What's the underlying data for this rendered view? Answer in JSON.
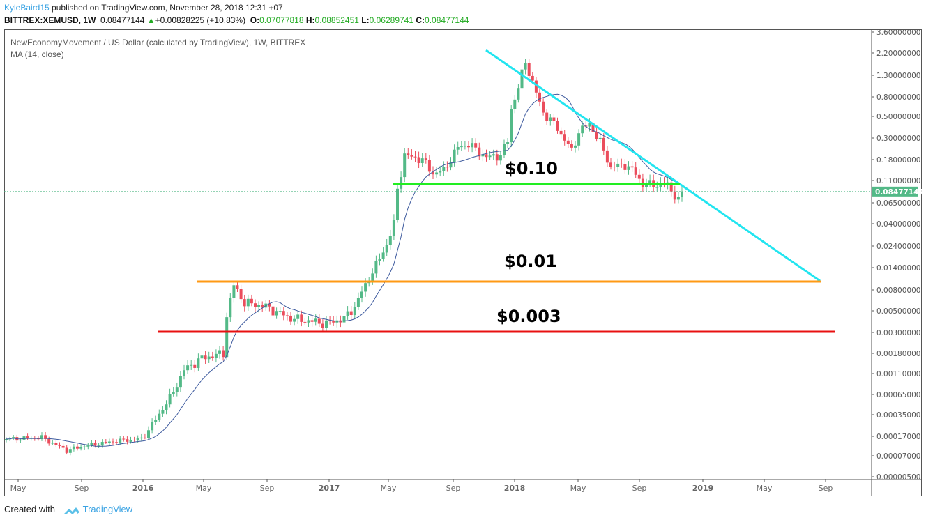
{
  "header": {
    "author": "KyleBaird15",
    "published": " published on TradingView.com, November 28, 2018 12:31 +07",
    "symbol": "BITTREX:XEMUSD, 1W",
    "last": "0.08477144",
    "change": "+0.00828225 (+10.83%)",
    "o_label": "O:",
    "o": "0.07077818",
    "h_label": "H:",
    "h": "0.08852451",
    "l_label": "L:",
    "l": "0.06289741",
    "c_label": "C:",
    "c": "0.08477144"
  },
  "legend": {
    "title": "NewEconomyMovement / US Dollar (calculated by TradingView), 1W, BITTREX",
    "ma": "MA (14, close)"
  },
  "footer": {
    "created": "Created with",
    "brand": "TradingView"
  },
  "colors": {
    "up": "#53b987",
    "down": "#eb4d5c",
    "ma": "#3d5a9e",
    "trend": "#22e5f0",
    "support1": "#22ee22",
    "support2": "#ff9a14",
    "support3": "#e81010"
  },
  "chart_data": {
    "type": "candlestick",
    "scale": "log",
    "y_ticks": [
      3.6,
      2.2,
      1.3,
      0.8,
      0.5,
      0.3,
      0.18,
      0.11,
      0.065,
      0.04,
      0.024,
      0.014,
      0.008,
      0.005,
      0.003,
      0.0018,
      0.0011,
      0.00065,
      0.00035,
      0.00017,
      7e-05,
      5e-06
    ],
    "y_tick_labels": [
      "3.60000000",
      "2.20000000",
      "1.30000000",
      "0.80000000",
      "0.50000000",
      "0.30000000",
      "0.18000000",
      "0.11000000",
      "0.06500000",
      "0.04000000",
      "0.02400000",
      "0.01400000",
      "0.00800000",
      "0.00500000",
      "0.00300000",
      "0.00180000",
      "0.00110000",
      "0.00065000",
      "0.00035000",
      "0.00017000",
      "0.00007000",
      "0.00000500"
    ],
    "x_ticks": [
      "May",
      "Sep",
      "2016",
      "May",
      "Sep",
      "2017",
      "May",
      "Sep",
      "2018",
      "May",
      "Sep",
      "2019",
      "May",
      "Sep"
    ],
    "last_price": 0.08477144,
    "last_price_label": "0.08477144",
    "weekly_close_keypoints": [
      [
        0,
        0.00015
      ],
      [
        10,
        0.00016
      ],
      [
        17,
        9e-05
      ],
      [
        22,
        0.00011
      ],
      [
        32,
        0.00014
      ],
      [
        38,
        0.00015
      ],
      [
        42,
        0.0003
      ],
      [
        47,
        0.0007
      ],
      [
        50,
        0.0012
      ],
      [
        55,
        0.0016
      ],
      [
        61,
        0.0018
      ],
      [
        62,
        0.0045
      ],
      [
        64,
        0.009
      ],
      [
        67,
        0.006
      ],
      [
        73,
        0.0055
      ],
      [
        80,
        0.0042
      ],
      [
        90,
        0.0037
      ],
      [
        95,
        0.0042
      ],
      [
        98,
        0.0055
      ],
      [
        101,
        0.009
      ],
      [
        104,
        0.015
      ],
      [
        107,
        0.025
      ],
      [
        109,
        0.04
      ],
      [
        110,
        0.09
      ],
      [
        112,
        0.2
      ],
      [
        117,
        0.18
      ],
      [
        120,
        0.13
      ],
      [
        123,
        0.14
      ],
      [
        127,
        0.24
      ],
      [
        130,
        0.26
      ],
      [
        135,
        0.19
      ],
      [
        139,
        0.2
      ],
      [
        141,
        0.28
      ],
      [
        142,
        0.6
      ],
      [
        144,
        1.0
      ],
      [
        146,
        1.8
      ],
      [
        148,
        1.1
      ],
      [
        151,
        0.55
      ],
      [
        155,
        0.38
      ],
      [
        159,
        0.22
      ],
      [
        161,
        0.35
      ],
      [
        164,
        0.42
      ],
      [
        167,
        0.27
      ],
      [
        170,
        0.15
      ],
      [
        174,
        0.16
      ],
      [
        177,
        0.13
      ],
      [
        179,
        0.1
      ],
      [
        186,
        0.1
      ],
      [
        189,
        0.068
      ],
      [
        190,
        0.0848
      ]
    ],
    "ma_period": 14,
    "annotations": [
      {
        "label": "$0.10",
        "price": 0.1
      },
      {
        "label": "$0.01",
        "price": 0.0095
      },
      {
        "label": "$0.003",
        "price": 0.003
      }
    ]
  }
}
